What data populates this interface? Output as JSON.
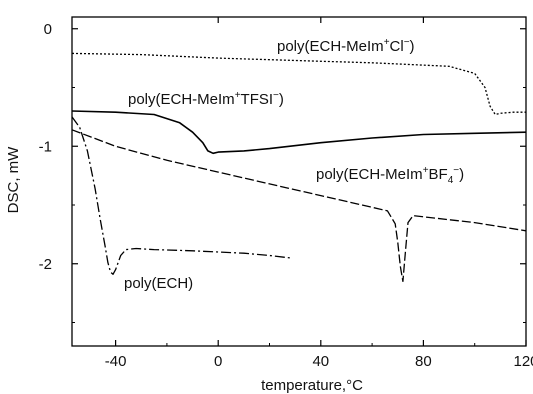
{
  "chart_data": {
    "type": "line",
    "title": "",
    "xlabel": "temperature,°C",
    "ylabel": "DSC, mW",
    "xlim": [
      -57,
      120
    ],
    "ylim": [
      -2.7,
      0.1
    ],
    "x_ticks": [
      -40,
      0,
      40,
      80,
      120
    ],
    "y_ticks": [
      0,
      -1,
      -2
    ],
    "x_tick_labels": [
      "-40",
      "0",
      "40",
      "80",
      "120"
    ],
    "y_tick_labels": [
      "0",
      "-1",
      "-2"
    ],
    "grid": false,
    "legend": "none",
    "series": [
      {
        "name": "poly(ECH-MeIm+Cl−)",
        "label_parts": [
          [
            "poly(ECH-MeIm",
            ""
          ],
          [
            "+",
            "sup"
          ],
          [
            "Cl",
            ""
          ],
          [
            "−",
            "sup"
          ],
          [
            ")",
            ""
          ]
        ],
        "style": "dotted",
        "x": [
          -57,
          -30,
          0,
          30,
          60,
          90,
          100,
          104,
          106,
          108,
          110,
          115,
          120
        ],
        "y": [
          -0.21,
          -0.22,
          -0.25,
          -0.27,
          -0.29,
          -0.32,
          -0.38,
          -0.5,
          -0.66,
          -0.73,
          -0.72,
          -0.71,
          -0.71
        ]
      },
      {
        "name": "poly(ECH-MeIm+TFSI−)",
        "label_parts": [
          [
            "poly(ECH-MeIm",
            ""
          ],
          [
            "+",
            "sup"
          ],
          [
            "TFSI",
            ""
          ],
          [
            "−",
            "sup"
          ],
          [
            ")",
            ""
          ]
        ],
        "style": "solid",
        "x": [
          -57,
          -40,
          -25,
          -15,
          -10,
          -6,
          -4,
          -2,
          0,
          10,
          20,
          40,
          60,
          80,
          100,
          120
        ],
        "y": [
          -0.7,
          -0.71,
          -0.73,
          -0.8,
          -0.88,
          -0.97,
          -1.04,
          -1.06,
          -1.05,
          -1.04,
          -1.02,
          -0.97,
          -0.93,
          -0.9,
          -0.89,
          -0.88
        ]
      },
      {
        "name": "poly(ECH-MeIm+BF4−)",
        "label_parts": [
          [
            "poly(ECH-MeIm",
            ""
          ],
          [
            "+",
            "sup"
          ],
          [
            "BF",
            ""
          ],
          [
            "4",
            "sub"
          ],
          [
            "−",
            "sup"
          ],
          [
            ")",
            ""
          ]
        ],
        "style": "dashed",
        "x": [
          -57,
          -40,
          -20,
          0,
          20,
          40,
          60,
          66,
          69,
          70,
          71,
          72,
          73,
          74,
          76,
          80,
          100,
          120
        ],
        "y": [
          -0.86,
          -1.0,
          -1.12,
          -1.22,
          -1.32,
          -1.42,
          -1.52,
          -1.55,
          -1.66,
          -1.82,
          -2.02,
          -2.15,
          -1.9,
          -1.65,
          -1.59,
          -1.6,
          -1.65,
          -1.72
        ]
      },
      {
        "name": "poly(ECH)",
        "label_parts": [
          [
            "poly(ECH)",
            ""
          ]
        ],
        "style": "dashdot",
        "x": [
          -57,
          -54,
          -51,
          -48,
          -46,
          -44,
          -43,
          -42,
          -41,
          -40,
          -38,
          -36,
          -32,
          -25,
          -10,
          0,
          10,
          20,
          28
        ],
        "y": [
          -0.75,
          -0.84,
          -1.04,
          -1.36,
          -1.62,
          -1.86,
          -1.99,
          -2.07,
          -2.09,
          -2.05,
          -1.93,
          -1.88,
          -1.87,
          -1.88,
          -1.89,
          -1.9,
          -1.91,
          -1.93,
          -1.95
        ]
      }
    ]
  }
}
